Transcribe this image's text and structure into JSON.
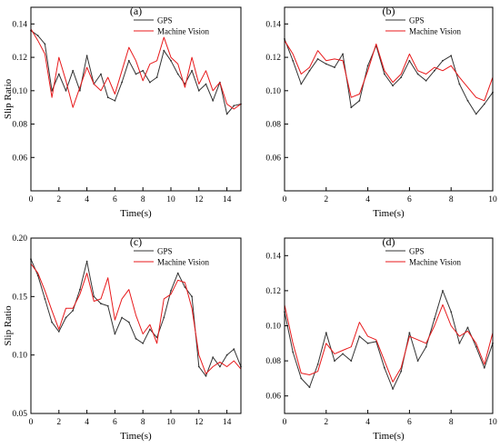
{
  "chart_data": [
    {
      "type": "line",
      "panel_label": "(a)",
      "xlabel": "Time(s)",
      "ylabel": "Slip Ratio",
      "xlim": [
        0,
        15
      ],
      "ylim": [
        0.04,
        0.15
      ],
      "xticks": [
        0,
        2,
        4,
        6,
        8,
        10,
        12,
        14
      ],
      "yticks": [
        0.06,
        0.08,
        0.1,
        0.12,
        0.14
      ],
      "ytick_labels": [
        "0.06",
        "0.08",
        "0.10",
        "0.12",
        "0.14"
      ],
      "legend_position": "top-right",
      "series": [
        {
          "name": "GPS",
          "color": "#333333",
          "x": [
            0,
            0.5,
            1,
            1.5,
            2,
            2.5,
            3,
            3.5,
            4,
            4.5,
            5,
            5.5,
            6,
            6.5,
            7,
            7.5,
            8,
            8.5,
            9,
            9.5,
            10,
            10.5,
            11,
            11.5,
            12,
            12.5,
            13,
            13.5,
            14,
            14.5,
            15
          ],
          "y": [
            0.136,
            0.133,
            0.128,
            0.1,
            0.11,
            0.1,
            0.112,
            0.1,
            0.121,
            0.104,
            0.11,
            0.096,
            0.094,
            0.105,
            0.118,
            0.11,
            0.112,
            0.105,
            0.108,
            0.124,
            0.118,
            0.11,
            0.104,
            0.112,
            0.1,
            0.104,
            0.094,
            0.105,
            0.086,
            0.091,
            0.092
          ]
        },
        {
          "name": "Machine Vision",
          "color": "#e8191b",
          "x": [
            0,
            0.5,
            1,
            1.5,
            2,
            2.5,
            3,
            3.5,
            4,
            4.5,
            5,
            5.5,
            6,
            6.5,
            7,
            7.5,
            8,
            8.5,
            9,
            9.5,
            10,
            10.5,
            11,
            11.5,
            12,
            12.5,
            13,
            13.5,
            14,
            14.5,
            15
          ],
          "y": [
            0.137,
            0.13,
            0.122,
            0.096,
            0.12,
            0.106,
            0.09,
            0.102,
            0.114,
            0.104,
            0.1,
            0.108,
            0.098,
            0.112,
            0.126,
            0.118,
            0.106,
            0.116,
            0.118,
            0.132,
            0.12,
            0.116,
            0.102,
            0.12,
            0.104,
            0.112,
            0.1,
            0.105,
            0.092,
            0.089,
            0.092
          ]
        }
      ]
    },
    {
      "type": "line",
      "panel_label": "(b)",
      "xlabel": "Time(s)",
      "ylabel": "",
      "xlim": [
        0,
        10
      ],
      "ylim": [
        0.04,
        0.15
      ],
      "xticks": [
        0,
        2,
        4,
        6,
        8,
        10
      ],
      "yticks": [
        0.06,
        0.08,
        0.1,
        0.12,
        0.14
      ],
      "ytick_labels": [
        "0.06",
        "0.08",
        "0.10",
        "0.12",
        "0.14"
      ],
      "legend_position": "top-right",
      "series": [
        {
          "name": "GPS",
          "color": "#333333",
          "x": [
            0,
            0.4,
            0.8,
            1.2,
            1.6,
            2.0,
            2.4,
            2.8,
            3.2,
            3.6,
            4.0,
            4.4,
            4.8,
            5.2,
            5.6,
            6.0,
            6.4,
            6.8,
            7.2,
            7.6,
            8.0,
            8.4,
            8.8,
            9.2,
            9.6,
            10
          ],
          "y": [
            0.131,
            0.118,
            0.104,
            0.112,
            0.119,
            0.116,
            0.114,
            0.122,
            0.09,
            0.094,
            0.115,
            0.127,
            0.11,
            0.103,
            0.108,
            0.118,
            0.11,
            0.106,
            0.112,
            0.118,
            0.121,
            0.104,
            0.094,
            0.086,
            0.092,
            0.099
          ]
        },
        {
          "name": "Machine Vision",
          "color": "#e8191b",
          "x": [
            0,
            0.4,
            0.8,
            1.2,
            1.6,
            2.0,
            2.4,
            2.8,
            3.2,
            3.6,
            4.0,
            4.4,
            4.8,
            5.2,
            5.6,
            6.0,
            6.4,
            6.8,
            7.2,
            7.6,
            8.0,
            8.4,
            8.8,
            9.2,
            9.6,
            10
          ],
          "y": [
            0.13,
            0.122,
            0.11,
            0.114,
            0.124,
            0.118,
            0.119,
            0.118,
            0.096,
            0.098,
            0.112,
            0.128,
            0.112,
            0.105,
            0.11,
            0.122,
            0.112,
            0.11,
            0.114,
            0.112,
            0.115,
            0.108,
            0.102,
            0.096,
            0.094,
            0.108
          ]
        }
      ]
    },
    {
      "type": "line",
      "panel_label": "(c)",
      "xlabel": "Time(s)",
      "ylabel": "Slip Ratio",
      "xlim": [
        0,
        15
      ],
      "ylim": [
        0.05,
        0.2
      ],
      "xticks": [
        0,
        2,
        4,
        6,
        8,
        10,
        12,
        14
      ],
      "yticks": [
        0.05,
        0.1,
        0.15,
        0.2
      ],
      "ytick_labels": [
        "0.05",
        "0.10",
        "0.15",
        "0.20"
      ],
      "legend_position": "top-right",
      "series": [
        {
          "name": "GPS",
          "color": "#333333",
          "x": [
            0,
            0.5,
            1,
            1.5,
            2,
            2.5,
            3,
            3.5,
            4,
            4.5,
            5,
            5.5,
            6,
            6.5,
            7,
            7.5,
            8,
            8.5,
            9,
            9.5,
            10,
            10.5,
            11,
            11.5,
            12,
            12.5,
            13,
            13.5,
            14,
            14.5,
            15
          ],
          "y": [
            0.182,
            0.168,
            0.148,
            0.128,
            0.12,
            0.132,
            0.138,
            0.156,
            0.18,
            0.15,
            0.144,
            0.142,
            0.118,
            0.132,
            0.128,
            0.114,
            0.11,
            0.122,
            0.115,
            0.132,
            0.155,
            0.17,
            0.158,
            0.15,
            0.09,
            0.082,
            0.098,
            0.09,
            0.1,
            0.105,
            0.09
          ]
        },
        {
          "name": "Machine Vision",
          "color": "#e8191b",
          "x": [
            0,
            0.5,
            1,
            1.5,
            2,
            2.5,
            3,
            3.5,
            4,
            4.5,
            5,
            5.5,
            6,
            6.5,
            7,
            7.5,
            8,
            8.5,
            9,
            9.5,
            10,
            10.5,
            11,
            11.5,
            12,
            12.5,
            13,
            13.5,
            14,
            14.5,
            15
          ],
          "y": [
            0.178,
            0.17,
            0.155,
            0.138,
            0.122,
            0.14,
            0.14,
            0.152,
            0.17,
            0.146,
            0.148,
            0.166,
            0.13,
            0.148,
            0.156,
            0.134,
            0.118,
            0.126,
            0.11,
            0.148,
            0.152,
            0.164,
            0.162,
            0.14,
            0.1,
            0.084,
            0.09,
            0.094,
            0.09,
            0.095,
            0.088
          ]
        }
      ]
    },
    {
      "type": "line",
      "panel_label": "(d)",
      "xlabel": "Time(s)",
      "ylabel": "",
      "xlim": [
        0,
        10
      ],
      "ylim": [
        0.05,
        0.15
      ],
      "xticks": [
        0,
        2,
        4,
        6,
        8,
        10
      ],
      "yticks": [
        0.06,
        0.08,
        0.1,
        0.12,
        0.14
      ],
      "ytick_labels": [
        "0.06",
        "0.08",
        "0.10",
        "0.12",
        "0.14"
      ],
      "legend_position": "top-right",
      "series": [
        {
          "name": "GPS",
          "color": "#333333",
          "x": [
            0,
            0.4,
            0.8,
            1.2,
            1.6,
            2.0,
            2.4,
            2.8,
            3.2,
            3.6,
            4.0,
            4.4,
            4.8,
            5.2,
            5.6,
            6.0,
            6.4,
            6.8,
            7.2,
            7.6,
            8.0,
            8.4,
            8.8,
            9.2,
            9.6,
            10
          ],
          "y": [
            0.108,
            0.085,
            0.07,
            0.065,
            0.078,
            0.096,
            0.08,
            0.084,
            0.08,
            0.094,
            0.09,
            0.091,
            0.076,
            0.064,
            0.074,
            0.096,
            0.08,
            0.088,
            0.104,
            0.12,
            0.108,
            0.09,
            0.099,
            0.088,
            0.076,
            0.09
          ]
        },
        {
          "name": "Machine Vision",
          "color": "#e8191b",
          "x": [
            0,
            0.4,
            0.8,
            1.2,
            1.6,
            2.0,
            2.4,
            2.8,
            3.2,
            3.6,
            4.0,
            4.4,
            4.8,
            5.2,
            5.6,
            6.0,
            6.4,
            6.8,
            7.2,
            7.6,
            8.0,
            8.4,
            8.8,
            9.2,
            9.6,
            10
          ],
          "y": [
            0.112,
            0.09,
            0.073,
            0.072,
            0.074,
            0.09,
            0.084,
            0.086,
            0.088,
            0.102,
            0.094,
            0.092,
            0.08,
            0.068,
            0.076,
            0.094,
            0.092,
            0.09,
            0.1,
            0.112,
            0.1,
            0.094,
            0.097,
            0.09,
            0.078,
            0.096
          ]
        }
      ]
    }
  ]
}
